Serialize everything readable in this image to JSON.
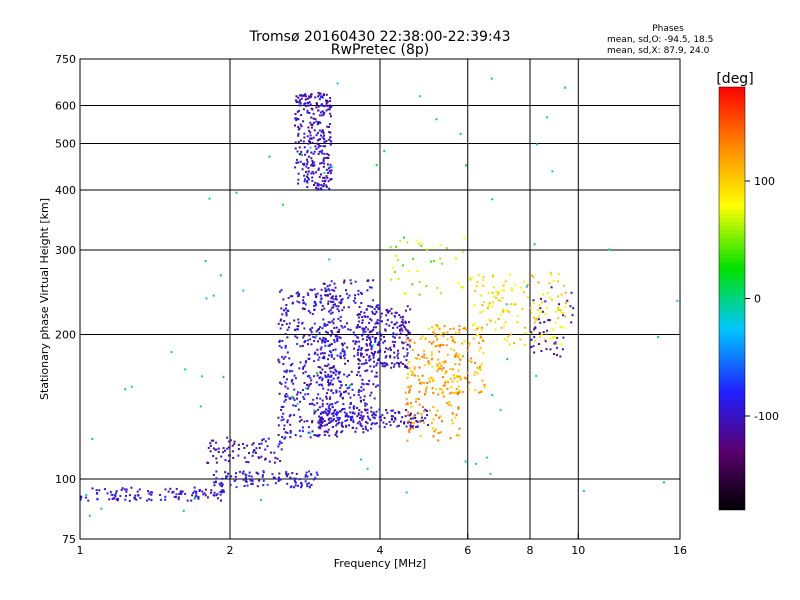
{
  "chart_data": {
    "type": "scatter",
    "title": "Tromsø 20160430 22:38:00-22:39:43",
    "subtitle": "RwPretec (8p)",
    "xlabel": "Frequency [MHz]",
    "ylabel": "Stationary phase Virtual Height [km]",
    "x_scale": "log",
    "y_scale": "log",
    "xlim": [
      1,
      16
    ],
    "ylim": [
      75,
      750
    ],
    "x_ticks": [
      1,
      2,
      4,
      6,
      8,
      10,
      16
    ],
    "y_ticks": [
      75,
      100,
      200,
      300,
      400,
      500,
      600,
      750
    ],
    "grid": true,
    "phase_stats": {
      "heading": "Phases",
      "line_o": "mean, sd,O: -94.5, 18.5",
      "line_x": "mean, sd,X:  87.9, 24.0"
    },
    "colorbar": {
      "label": "[deg]",
      "ticks": [
        100,
        0,
        -100
      ],
      "vmin": -180,
      "vmax": 180,
      "colors": [
        "#000000",
        "#5a0070",
        "#2020ff",
        "#00c8ff",
        "#00e000",
        "#ffff00",
        "#ff8800",
        "#ff0000"
      ]
    },
    "clusters": [
      {
        "x": [
          1.0,
          1.95
        ],
        "y": [
          90,
          96
        ],
        "phase": -95,
        "n": 120
      },
      {
        "x": [
          1.85,
          3.0
        ],
        "y": [
          96,
          104
        ],
        "phase": -90,
        "n": 110
      },
      {
        "x": [
          1.8,
          2.6
        ],
        "y": [
          108,
          122
        ],
        "phase": -100,
        "n": 80
      },
      {
        "x": [
          2.5,
          3.4
        ],
        "y": [
          122,
          250
        ],
        "phase": -95,
        "n": 420
      },
      {
        "x": [
          2.7,
          3.2
        ],
        "y": [
          400,
          640
        ],
        "phase": -100,
        "n": 300
      },
      {
        "x": [
          3.0,
          4.0
        ],
        "y": [
          125,
          260
        ],
        "phase": -95,
        "n": 300
      },
      {
        "x": [
          3.6,
          4.6
        ],
        "y": [
          170,
          230
        ],
        "phase": -100,
        "n": 220
      },
      {
        "x": [
          3.0,
          5.0
        ],
        "y": [
          128,
          140
        ],
        "phase": -100,
        "n": 160
      },
      {
        "x": [
          4.5,
          5.8
        ],
        "y": [
          120,
          200
        ],
        "phase": 120,
        "n": 170
      },
      {
        "x": [
          5.0,
          6.5
        ],
        "y": [
          150,
          210
        ],
        "phase": 110,
        "n": 130
      },
      {
        "x": [
          6.0,
          9.5
        ],
        "y": [
          190,
          270
        ],
        "phase": 90,
        "n": 150
      },
      {
        "x": [
          8.0,
          9.8
        ],
        "y": [
          180,
          260
        ],
        "phase": -100,
        "n": 45
      },
      {
        "x": [
          4.2,
          6.0
        ],
        "y": [
          240,
          320
        ],
        "phase": 60,
        "n": 40
      },
      {
        "x": [
          1.0,
          16.0
        ],
        "y": [
          80,
          700
        ],
        "phase": 0,
        "n": 70
      }
    ]
  }
}
